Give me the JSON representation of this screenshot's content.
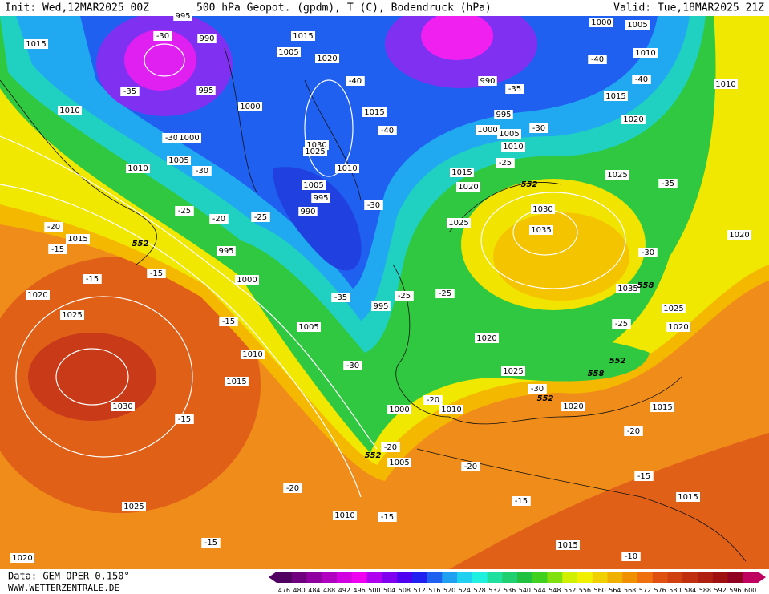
{
  "header": {
    "init": "Init: Wed,12MAR2025 00Z",
    "title": "500 hPa Geopot. (gpdm), T (C), Bodendruck (hPa)",
    "valid": "Valid: Tue,18MAR2025 21Z"
  },
  "footer": {
    "source": "Data: GEM OPER 0.150°",
    "site": "WWW.WETTERZENTRALE.DE"
  },
  "colorbar": {
    "values": [
      476,
      480,
      484,
      488,
      492,
      496,
      500,
      504,
      508,
      512,
      516,
      520,
      524,
      528,
      532,
      536,
      540,
      544,
      548,
      552,
      556,
      560,
      564,
      568,
      572,
      576,
      580,
      584,
      588,
      592,
      596,
      600
    ],
    "colors": [
      "#500060",
      "#700080",
      "#9000a0",
      "#b000c0",
      "#d000e0",
      "#f000f0",
      "#b000f0",
      "#8000f0",
      "#5000f0",
      "#2020f0",
      "#2060f0",
      "#20a0f0",
      "#20d0f0",
      "#20f0e0",
      "#20e0a0",
      "#20d070",
      "#20c040",
      "#40d020",
      "#80e010",
      "#d0f000",
      "#f0f000",
      "#f0d000",
      "#f0b000",
      "#f09000",
      "#f07010",
      "#e05010",
      "#d04010",
      "#c03010",
      "#b02010",
      "#a01010",
      "#900020",
      "#c00060"
    ]
  },
  "map": {
    "labels": [
      "995",
      "990",
      "1015",
      "-30",
      "1015",
      "1005",
      "1020",
      "1000",
      "1005",
      "1010",
      "-40",
      "-40",
      "1010",
      "990",
      "-35",
      "1015",
      "-35",
      "995",
      "1010",
      "1000",
      "-40",
      "1015",
      "995",
      "1020",
      "1000",
      "1005",
      "-30",
      "-30",
      "1000",
      "1030",
      "1025",
      "-40",
      "1010",
      "1005",
      "1010",
      "-30",
      "1010",
      "-25",
      "1015",
      "1025",
      "-35",
      "1005",
      "1020",
      "552",
      "995",
      "-30",
      "-25",
      "-20",
      "-25",
      "990",
      "1030",
      "-20",
      "1015",
      "552",
      "-15",
      "1025",
      "1035",
      "995",
      "1020",
      "-30",
      "-15",
      "-15",
      "1000",
      "1035",
      "558",
      "1020",
      "-25",
      "-35",
      "-25",
      "1025",
      "995",
      "1025",
      "-15",
      "1005",
      "-25",
      "1020",
      "1020",
      "1010",
      "552",
      "558",
      "-30",
      "1025",
      "1015",
      "-30",
      "552",
      "-20",
      "1030",
      "1020",
      "1000",
      "1010",
      "1015",
      "-15",
      "-20",
      "-20",
      "552",
      "1005",
      "-20",
      "-15",
      "-20",
      "1015",
      "-15",
      "1025",
      "1010",
      "-15",
      "-15",
      "1015",
      "1020",
      "-10"
    ]
  }
}
